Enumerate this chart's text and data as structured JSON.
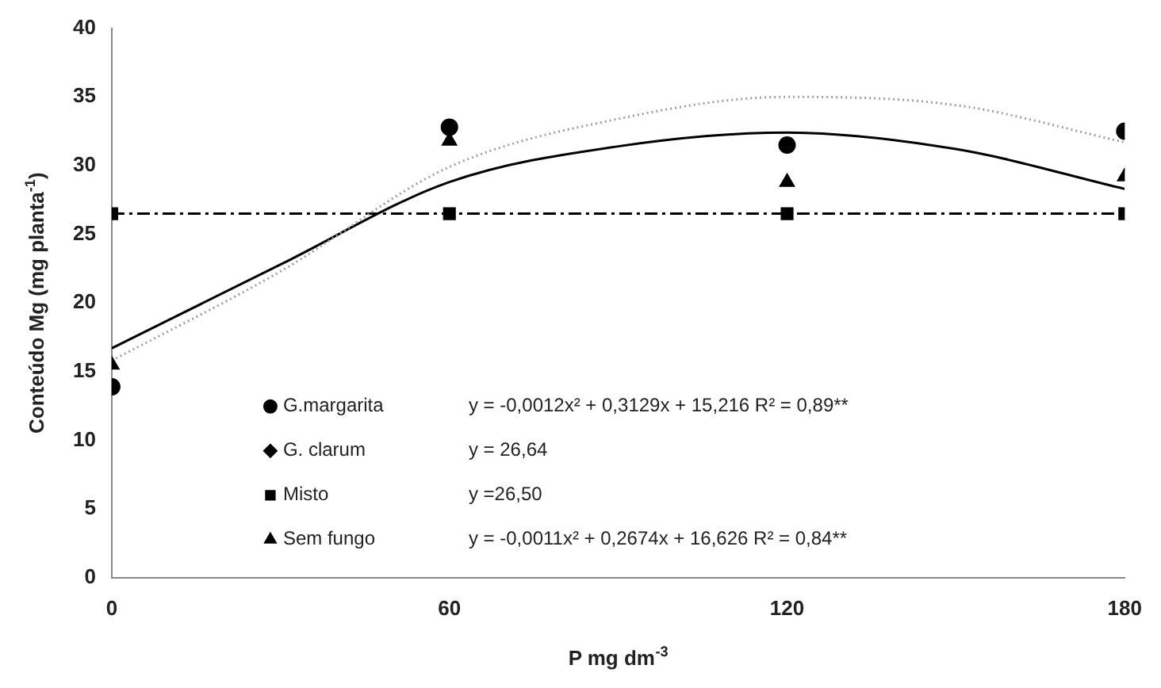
{
  "chart_data": {
    "type": "scatter",
    "xlabel": "P mg dm$^{-3}$",
    "ylabel": "Conteúdo Mg (mg planta$^{-1}$)",
    "x": [
      0,
      60,
      120,
      180
    ],
    "series": [
      {
        "name": "G.margarita",
        "color": "#000000",
        "marker": "circle",
        "values": [
          13.9,
          32.8,
          31.5,
          32.5
        ]
      },
      {
        "name": "G. clarum",
        "color": "#000000",
        "marker": "diamond",
        "values": [
          null,
          null,
          null,
          null
        ]
      },
      {
        "name": "Misto",
        "color": "#000000",
        "marker": "square",
        "values": [
          26.5,
          26.5,
          26.5,
          26.5
        ]
      },
      {
        "name": "Sem fungo",
        "color": "#000000",
        "marker": "triangle",
        "values": [
          15.5,
          31.8,
          28.8,
          29.2
        ]
      },
      {
        "type": "line",
        "color": "#a0a0a0",
        "line_style": "dotted",
        "x": [
          0,
          30,
          60,
          90,
          120,
          150,
          180
        ],
        "values": [
          15.8,
          22.3,
          29.9,
          33.4,
          35.0,
          34.4,
          31.7
        ]
      },
      {
        "type": "line",
        "color": "#000000",
        "line_style": "solid",
        "x": [
          0,
          30,
          60,
          90,
          120,
          150,
          180
        ],
        "values": [
          16.7,
          22.8,
          28.8,
          31.4,
          32.4,
          31.2,
          28.3
        ]
      },
      {
        "type": "line",
        "color": "#000000",
        "line_style": "dashdot",
        "x": [
          0,
          180
        ],
        "values": [
          26.5,
          26.5
        ]
      }
    ],
    "annotations": [
      "y = -0,0012x² + 0,3129x + 15,216 R² = 0,89**",
      "y = 26,64",
      "y =26,50",
      "y = -0,0011x² + 0,2674x + 16,626 R² = 0,84**"
    ],
    "xlim": [
      0,
      180
    ],
    "xticks": [
      0,
      60,
      120,
      180
    ],
    "ylim": [
      0,
      40
    ],
    "yticks": [
      0,
      5,
      10,
      15,
      20,
      25,
      30,
      35,
      40
    ],
    "grid": false,
    "legend": "bottom left"
  }
}
